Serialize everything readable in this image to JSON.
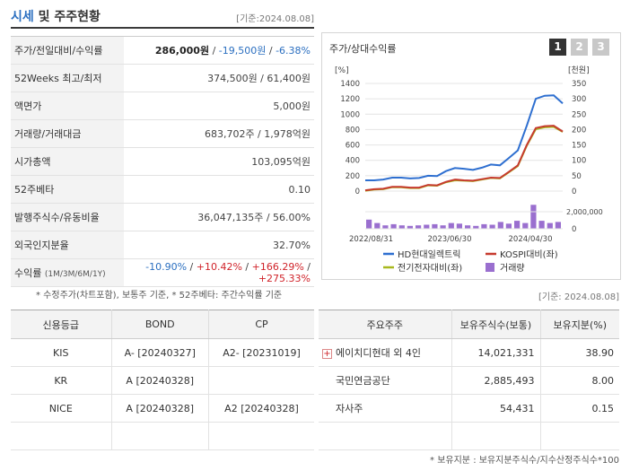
{
  "header": {
    "title_part1": "시세",
    "title_part2": " 및 주주현황",
    "date": "[기준:2024.08.08]"
  },
  "info_rows": [
    {
      "label": "주가/전일대비/수익률",
      "price": "286,000원",
      "change": "-19,500원",
      "rate": "-6.38%"
    },
    {
      "label": "52Weeks 최고/최저",
      "value": "374,500원 / 61,400원"
    },
    {
      "label": "액면가",
      "value": "5,000원"
    },
    {
      "label": "거래량/거래대금",
      "value": "683,702주 / 1,978억원"
    },
    {
      "label": "시가총액",
      "value": "103,095억원"
    },
    {
      "label": "52주베타",
      "value": "0.10"
    },
    {
      "label": "발행주식수/유동비율",
      "value": "36,047,135주 / 56.00%"
    },
    {
      "label": "외국인지분율",
      "value": "32.70%"
    },
    {
      "label": "수익률",
      "sub": "(1M/3M/6M/1Y)",
      "r1": "-10.90%",
      "r2": "+10.42%",
      "r3": "+166.29%",
      "r4": "+275.33%"
    }
  ],
  "note1": "* 수정주가(차트포함), 보통주 기준, * 52주베타: 주간수익률 기준",
  "chart_panel": {
    "title": "주가/상대수익률",
    "tabs": [
      "1",
      "2",
      "3"
    ]
  },
  "chart_data": {
    "type": "line",
    "left_unit": "[%]",
    "right_unit": "[천원]",
    "left_ticks": [
      "1400",
      "1200",
      "1000",
      "800",
      "600",
      "400",
      "200",
      "0"
    ],
    "right_ticks": [
      "350",
      "300",
      "250",
      "200",
      "150",
      "100",
      "50",
      "0"
    ],
    "volume_tick": "2,000,000",
    "volume_zero": "0",
    "x_labels": [
      "2022/08/31",
      "2023/06/30",
      "2024/04/30"
    ],
    "ylim_left": [
      0,
      1400
    ],
    "series": [
      {
        "name": "HD현대일렉트릭",
        "color": "#2e6fd0",
        "values": [
          140,
          140,
          150,
          175,
          175,
          165,
          170,
          200,
          195,
          260,
          300,
          290,
          275,
          305,
          345,
          335,
          430,
          530,
          850,
          1200,
          1240,
          1245,
          1140
        ]
      },
      {
        "name": "KOSPI대비(좌)",
        "color": "#c63a2e",
        "values": [
          10,
          25,
          30,
          55,
          55,
          45,
          45,
          80,
          75,
          120,
          150,
          140,
          135,
          155,
          175,
          170,
          250,
          335,
          600,
          820,
          845,
          850,
          775
        ]
      },
      {
        "name": "전기전자대비(좌)",
        "color": "#a8b81e",
        "values": [
          5,
          20,
          25,
          50,
          50,
          40,
          40,
          75,
          70,
          115,
          140,
          135,
          130,
          150,
          170,
          165,
          245,
          325,
          590,
          805,
          830,
          835,
          770
        ]
      }
    ],
    "volume": {
      "name": "거래량",
      "color": "#9a6fcf",
      "values": [
        800000,
        500000,
        300000,
        400000,
        300000,
        250000,
        300000,
        350000,
        400000,
        300000,
        500000,
        450000,
        300000,
        250000,
        400000,
        350000,
        600000,
        450000,
        700000,
        500000,
        2100000,
        700000,
        500000,
        600000
      ]
    }
  },
  "date2": "[기준: 2024.08.08]",
  "credit": {
    "headers": [
      "신용등급",
      "BOND",
      "CP"
    ],
    "rows": [
      [
        "KIS",
        "A-  [20240327]",
        "A2-  [20231019]"
      ],
      [
        "KR",
        "A  [20240328]",
        ""
      ],
      [
        "NICE",
        "A  [20240328]",
        "A2  [20240328]"
      ],
      [
        "",
        "",
        ""
      ]
    ]
  },
  "holders": {
    "headers": [
      "주요주주",
      "보유주식수(보통)",
      "보유지분(%)"
    ],
    "rows": [
      {
        "name": "에이치디현대 외 4인",
        "shares": "14,021,331",
        "pct": "38.90",
        "expand": "+"
      },
      {
        "name": "국민연금공단",
        "shares": "2,885,493",
        "pct": "8.00"
      },
      {
        "name": "자사주",
        "shares": "54,431",
        "pct": "0.15"
      },
      {
        "name": "",
        "shares": "",
        "pct": ""
      }
    ]
  },
  "note2": "* 보유지분 : 보유지분주식수/지수산정주식수*100"
}
